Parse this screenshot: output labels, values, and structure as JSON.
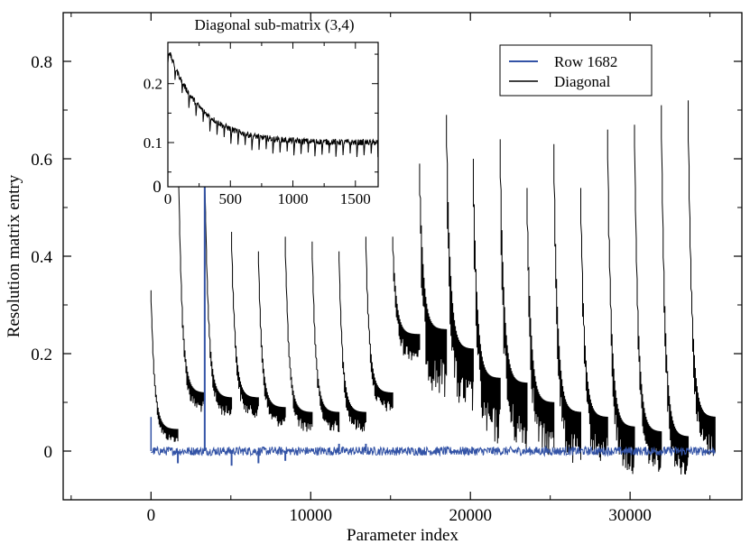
{
  "chart_data": [
    {
      "type": "line",
      "xlabel": "Parameter index",
      "ylabel": "Resolution matrix entry",
      "xlim": [
        -5500,
        37000
      ],
      "ylim": [
        -0.1,
        0.9
      ],
      "x_ticks": [
        0,
        10000,
        20000,
        30000
      ],
      "x_tick_labels": [
        "0",
        "10000",
        "20000",
        "30000"
      ],
      "y_ticks": [
        0,
        0.2,
        0.4,
        0.6,
        0.8
      ],
      "y_tick_labels": [
        "0",
        "0.2",
        "0.4",
        "0.6",
        "0.8"
      ],
      "legend_position": "top-right",
      "series": [
        {
          "name": "Row 1682",
          "color": "#3353a6",
          "baseline": 0.0,
          "spikes": [
            {
              "x": 1682,
              "y": -0.025
            },
            {
              "x": 3364,
              "y": 0.64
            },
            {
              "x": 5046,
              "y": -0.03
            },
            {
              "x": 6728,
              "y": -0.025
            },
            {
              "x": 8410,
              "y": -0.02
            },
            {
              "x": 11774,
              "y": 0.015
            },
            {
              "x": 13456,
              "y": 0.015
            }
          ]
        },
        {
          "name": "Diagonal",
          "color": "#000000",
          "blocks": [
            {
              "x_start": 0,
              "x_end": 1682,
              "peak": 0.33,
              "end": 0.045,
              "band": 0.02
            },
            {
              "x_start": 1682,
              "x_end": 3364,
              "peak": 0.68,
              "end": 0.12,
              "band": 0.03
            },
            {
              "x_start": 3364,
              "x_end": 5046,
              "peak": 0.59,
              "end": 0.11,
              "band": 0.03
            },
            {
              "x_start": 5046,
              "x_end": 6728,
              "peak": 0.45,
              "end": 0.11,
              "band": 0.03
            },
            {
              "x_start": 6728,
              "x_end": 8410,
              "peak": 0.41,
              "end": 0.09,
              "band": 0.03
            },
            {
              "x_start": 8410,
              "x_end": 10092,
              "peak": 0.44,
              "end": 0.08,
              "band": 0.03
            },
            {
              "x_start": 10092,
              "x_end": 11774,
              "peak": 0.43,
              "end": 0.08,
              "band": 0.03
            },
            {
              "x_start": 11774,
              "x_end": 13456,
              "peak": 0.41,
              "end": 0.08,
              "band": 0.03
            },
            {
              "x_start": 13456,
              "x_end": 15138,
              "peak": 0.44,
              "end": 0.12,
              "band": 0.03
            },
            {
              "x_start": 15138,
              "x_end": 16820,
              "peak": 0.44,
              "end": 0.24,
              "band": 0.04
            },
            {
              "x_start": 16820,
              "x_end": 18502,
              "peak": 0.59,
              "end": 0.25,
              "band": 0.1
            },
            {
              "x_start": 18502,
              "x_end": 20184,
              "peak": 0.69,
              "end": 0.21,
              "band": 0.1
            },
            {
              "x_start": 20184,
              "x_end": 21866,
              "peak": 0.6,
              "end": 0.15,
              "band": 0.1
            },
            {
              "x_start": 21866,
              "x_end": 23548,
              "peak": 0.64,
              "end": 0.14,
              "band": 0.1
            },
            {
              "x_start": 23548,
              "x_end": 25230,
              "peak": 0.54,
              "end": 0.1,
              "band": 0.08
            },
            {
              "x_start": 25230,
              "x_end": 26912,
              "peak": 0.63,
              "end": 0.08,
              "band": 0.08
            },
            {
              "x_start": 26912,
              "x_end": 28594,
              "peak": 0.54,
              "end": 0.07,
              "band": 0.07
            },
            {
              "x_start": 28594,
              "x_end": 30276,
              "peak": 0.66,
              "end": 0.05,
              "band": 0.07
            },
            {
              "x_start": 30276,
              "x_end": 31958,
              "peak": 0.67,
              "end": 0.04,
              "band": 0.06
            },
            {
              "x_start": 31958,
              "x_end": 33640,
              "peak": 0.71,
              "end": 0.03,
              "band": 0.06
            },
            {
              "x_start": 33640,
              "x_end": 35322,
              "peak": 0.72,
              "end": 0.07,
              "band": 0.06
            }
          ]
        }
      ]
    },
    {
      "type": "line",
      "title": "Diagonal sub-matrix (3,4)",
      "xlim": [
        0,
        1682
      ],
      "ylim": [
        0.025,
        0.27
      ],
      "x_ticks": [
        0,
        500,
        1000,
        1500
      ],
      "x_tick_labels": [
        "0",
        "500",
        "1000",
        "1500"
      ],
      "y_ticks": [
        0.1,
        0.2
      ],
      "y_tick_labels": [
        "0.1",
        "0.2"
      ],
      "series": [
        {
          "color": "#000000",
          "peak": 0.26,
          "end": 0.1,
          "period": 56,
          "dip": 0.025
        }
      ]
    }
  ],
  "y_zero_label": "0"
}
